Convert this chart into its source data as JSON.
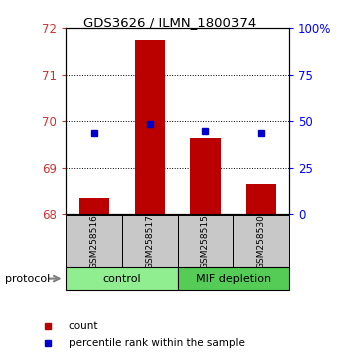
{
  "title": "GDS3626 / ILMN_1800374",
  "samples": [
    "GSM258516",
    "GSM258517",
    "GSM258515",
    "GSM258530"
  ],
  "group_labels": [
    "control",
    "MIF depletion"
  ],
  "group_colors": [
    "#90EE90",
    "#5DD55D"
  ],
  "count_values": [
    68.35,
    71.75,
    69.65,
    68.65
  ],
  "percentile_values": [
    69.75,
    69.95,
    69.8,
    69.75
  ],
  "bar_color": "#BB0000",
  "dot_color": "#0000CC",
  "ylim": [
    68.0,
    72.0
  ],
  "yticks_left": [
    68,
    69,
    70,
    71,
    72
  ],
  "yticks_right_vals": [
    0,
    25,
    50,
    75,
    100
  ],
  "yticks_right_pos": [
    68.0,
    69.0,
    70.0,
    71.0,
    72.0
  ],
  "legend_count": "count",
  "legend_percentile": "percentile rank within the sample",
  "protocol_label": "protocol",
  "sample_box_color": "#C8C8C8"
}
